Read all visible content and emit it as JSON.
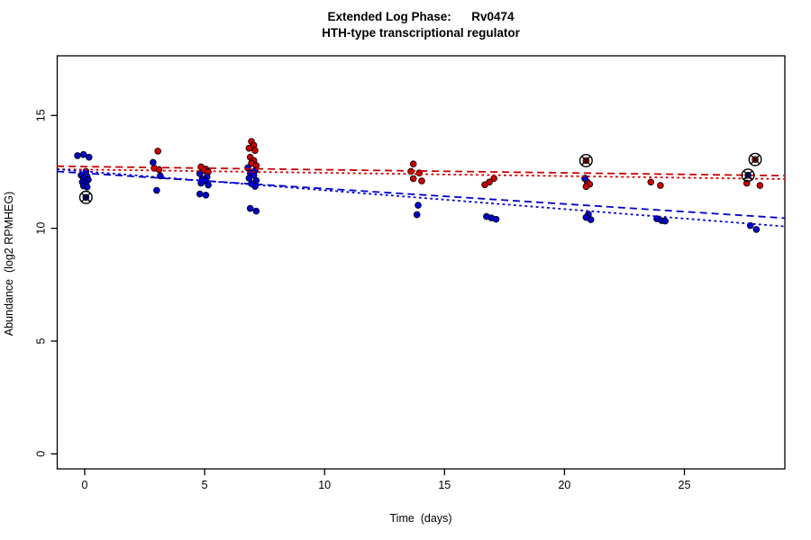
{
  "chart_data": {
    "type": "scatter",
    "title_line1": "Extended Log Phase:      Rv0474",
    "title_line2": "HTH-type transcriptional regulator",
    "xlabel": "Time  (days)",
    "ylabel": "Abundance  (log2 RPMHEG)",
    "x_ticks": [
      0,
      5,
      10,
      15,
      20,
      25
    ],
    "y_ticks": [
      0,
      5,
      10,
      15
    ],
    "xlim": [
      -1.16,
      29.2
    ],
    "ylim": [
      -0.67,
      17.64
    ],
    "grid": false,
    "legend": "none",
    "colors": {
      "red_series": "#CC0000",
      "blue_series": "#0000CC",
      "outlier_ring": "#000000",
      "axis": "#000000"
    },
    "series": [
      {
        "name": "condition-red",
        "color_key": "red_series",
        "points": [
          [
            3.05,
            13.42
          ],
          [
            2.9,
            12.66
          ],
          [
            3.1,
            12.6
          ],
          [
            4.85,
            12.72
          ],
          [
            5.05,
            12.62
          ],
          [
            4.95,
            12.55
          ],
          [
            5.15,
            12.5
          ],
          [
            6.95,
            13.85
          ],
          [
            7.05,
            13.68
          ],
          [
            6.85,
            13.55
          ],
          [
            7.1,
            13.45
          ],
          [
            6.9,
            13.15
          ],
          [
            7.05,
            13.0
          ],
          [
            6.95,
            12.88
          ],
          [
            7.15,
            12.78
          ],
          [
            13.7,
            12.85
          ],
          [
            13.6,
            12.52
          ],
          [
            13.95,
            12.45
          ],
          [
            13.7,
            12.2
          ],
          [
            14.05,
            12.1
          ],
          [
            16.68,
            11.93
          ],
          [
            16.87,
            12.05
          ],
          [
            17.06,
            12.21
          ],
          [
            20.85,
            12.22
          ],
          [
            20.95,
            12.05
          ],
          [
            21.05,
            11.95
          ],
          [
            20.9,
            11.85
          ],
          [
            23.6,
            12.05
          ],
          [
            24.0,
            11.9
          ],
          [
            27.6,
            12.0
          ],
          [
            28.15,
            11.9
          ]
        ]
      },
      {
        "name": "condition-blue",
        "color_key": "blue_series",
        "points": [
          [
            -0.3,
            13.22
          ],
          [
            -0.05,
            13.27
          ],
          [
            0.18,
            13.15
          ],
          [
            0.05,
            12.52
          ],
          [
            -0.15,
            12.35
          ],
          [
            0.1,
            12.3
          ],
          [
            -0.05,
            12.22
          ],
          [
            0.15,
            12.15
          ],
          [
            -0.1,
            12.05
          ],
          [
            0.05,
            11.98
          ],
          [
            -0.05,
            11.88
          ],
          [
            0.1,
            11.83
          ],
          [
            2.85,
            12.92
          ],
          [
            3.15,
            12.32
          ],
          [
            3.0,
            11.68
          ],
          [
            4.8,
            12.42
          ],
          [
            5.1,
            12.28
          ],
          [
            4.9,
            12.18
          ],
          [
            5.05,
            12.1
          ],
          [
            4.85,
            12.0
          ],
          [
            5.15,
            11.92
          ],
          [
            4.8,
            11.52
          ],
          [
            5.05,
            11.47
          ],
          [
            6.8,
            12.68
          ],
          [
            7.1,
            12.55
          ],
          [
            6.9,
            12.45
          ],
          [
            7.05,
            12.35
          ],
          [
            6.85,
            12.22
          ],
          [
            7.15,
            12.12
          ],
          [
            6.95,
            11.98
          ],
          [
            7.1,
            11.86
          ],
          [
            6.9,
            10.88
          ],
          [
            7.15,
            10.76
          ],
          [
            13.9,
            11.02
          ],
          [
            13.85,
            10.6
          ],
          [
            16.75,
            10.52
          ],
          [
            16.95,
            10.46
          ],
          [
            17.15,
            10.4
          ],
          [
            20.85,
            12.2
          ],
          [
            21.0,
            10.62
          ],
          [
            20.9,
            10.48
          ],
          [
            21.1,
            10.38
          ],
          [
            23.85,
            10.42
          ],
          [
            24.05,
            10.34
          ],
          [
            24.2,
            10.32
          ],
          [
            27.75,
            10.12
          ],
          [
            28.0,
            9.95
          ]
        ]
      }
    ],
    "outlier_points": [
      {
        "series": "condition-blue",
        "t": 0.05,
        "v": 11.37
      },
      {
        "series": "condition-red",
        "t": 20.9,
        "v": 13.0
      },
      {
        "series": "condition-red",
        "t": 27.95,
        "v": 13.05
      },
      {
        "series": "condition-blue",
        "t": 27.65,
        "v": 12.35
      }
    ],
    "trend_lines": [
      {
        "name": "red-dashed-fit",
        "color_key": "red_series",
        "style": "dashed",
        "t0": -1.16,
        "v0": 12.75,
        "t1": 29.2,
        "v1": 12.33
      },
      {
        "name": "red-dotted-fit",
        "color_key": "red_series",
        "style": "dotted",
        "t0": -1.16,
        "v0": 12.62,
        "t1": 29.2,
        "v1": 12.18
      },
      {
        "name": "blue-dashed-fit",
        "color_key": "blue_series",
        "style": "dashed",
        "t0": -1.16,
        "v0": 12.52,
        "t1": 29.2,
        "v1": 10.45
      },
      {
        "name": "blue-dotted-fit",
        "color_key": "blue_series",
        "style": "dotted",
        "t0": -1.16,
        "v0": 12.62,
        "t1": 29.2,
        "v1": 10.08
      }
    ]
  }
}
